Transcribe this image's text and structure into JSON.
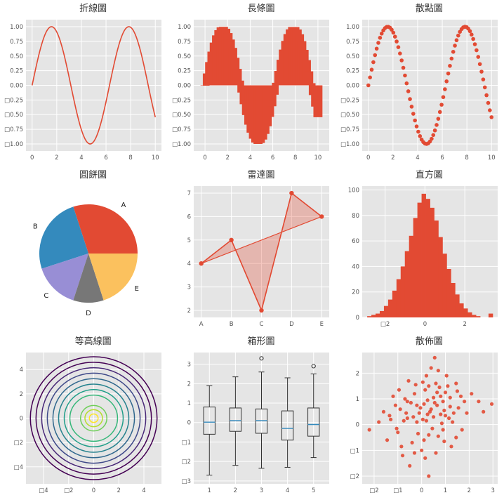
{
  "colors": {
    "panel": "#E5E5E5",
    "grid": "#ffffff",
    "accent": "#E24A33",
    "median_blue": "#348ABD",
    "text": "#333333",
    "tick_text": "#555555"
  },
  "chart_data": [
    {
      "type": "line",
      "title": "折線圖",
      "fn": "sin",
      "x_min": 0,
      "x_max": 10,
      "samples": 200,
      "color": "#E24A33",
      "xlim": [
        -0.5,
        10.5
      ],
      "ylim": [
        -1.12,
        1.12
      ],
      "x_ticks": {
        "values": [
          0,
          2,
          4,
          6,
          8,
          10
        ],
        "labels": [
          "0",
          "2",
          "4",
          "6",
          "8",
          "10"
        ]
      },
      "y_ticks": {
        "values": [
          1,
          0.75,
          0.5,
          0.25,
          0,
          -0.25,
          -0.5,
          -0.75,
          -1
        ],
        "labels": [
          "1.00",
          "0.75",
          "0.50",
          "0.25",
          "0.00",
          "□0.25",
          "□0.50",
          "□0.75",
          "□1.00"
        ]
      }
    },
    {
      "type": "bar",
      "title": "長條圖",
      "fn": "sin",
      "x_min": 0,
      "x_max": 10,
      "bars": 50,
      "bar_width": 0.8,
      "color": "#E24A33",
      "xlim": [
        -1.0,
        11.0
      ],
      "ylim": [
        -1.12,
        1.12
      ],
      "x_ticks": {
        "values": [
          0,
          2,
          4,
          6,
          8,
          10
        ],
        "labels": [
          "0",
          "2",
          "4",
          "6",
          "8",
          "10"
        ]
      },
      "y_ticks": {
        "values": [
          1,
          0.75,
          0.5,
          0.25,
          0,
          -0.25,
          -0.5,
          -0.75,
          -1
        ],
        "labels": [
          "1.00",
          "0.75",
          "0.50",
          "0.25",
          "0.00",
          "□0.25",
          "□0.50",
          "□0.75",
          "□1.00"
        ]
      }
    },
    {
      "type": "scatter-fn",
      "title": "散點圖",
      "fn": "sin",
      "x_min": 0,
      "x_max": 10,
      "points": 75,
      "color": "#E24A33",
      "xlim": [
        -0.5,
        10.5
      ],
      "ylim": [
        -1.12,
        1.12
      ],
      "x_ticks": {
        "values": [
          0,
          2,
          4,
          6,
          8,
          10
        ],
        "labels": [
          "0",
          "2",
          "4",
          "6",
          "8",
          "10"
        ]
      },
      "y_ticks": {
        "values": [
          1,
          0.75,
          0.5,
          0.25,
          0,
          -0.25,
          -0.5,
          -0.75,
          -1
        ],
        "labels": [
          "1.00",
          "0.75",
          "0.50",
          "0.25",
          "0.00",
          "□0.25",
          "□0.50",
          "□0.75",
          "□1.00"
        ]
      }
    },
    {
      "type": "pie",
      "title": "圓餅圖",
      "labels": [
        "A",
        "B",
        "C",
        "D",
        "E"
      ],
      "values": [
        30,
        25,
        15,
        10,
        20
      ],
      "colors": [
        "#E24A33",
        "#348ABD",
        "#988ED5",
        "#777777",
        "#FBC15E"
      ],
      "start_angle": 0,
      "direction": "counterclockwise"
    },
    {
      "type": "radar",
      "title": "雷達圖",
      "categories": [
        "A",
        "B",
        "C",
        "D",
        "E"
      ],
      "values": [
        4,
        5,
        2,
        7,
        6
      ],
      "color": "#E24A33",
      "fill_alpha": 0.3,
      "xlim": [
        -0.25,
        4.25
      ],
      "ylim": [
        1.7,
        7.3
      ],
      "x_ticks": {
        "values": [
          0,
          1,
          2,
          3,
          4
        ],
        "labels": [
          "A",
          "B",
          "C",
          "D",
          "E"
        ]
      },
      "y_ticks": {
        "values": [
          2,
          3,
          4,
          5,
          6,
          7
        ],
        "labels": [
          "2",
          "3",
          "4",
          "5",
          "6",
          "7"
        ]
      }
    },
    {
      "type": "histogram",
      "title": "直方圖",
      "color": "#E24A33",
      "bin_start": -2.9,
      "bin_width": 0.21,
      "counts": [
        1,
        2,
        3,
        5,
        9,
        14,
        21,
        30,
        40,
        52,
        64,
        78,
        90,
        97,
        93,
        86,
        76,
        63,
        50,
        38,
        27,
        18,
        11,
        7,
        4,
        2,
        1,
        0,
        0,
        3
      ],
      "xlim": [
        -3.15,
        3.65
      ],
      "ylim": [
        0,
        103
      ],
      "x_ticks": {
        "values": [
          -2,
          0,
          2
        ],
        "labels": [
          "□2",
          "0",
          "2"
        ]
      },
      "y_ticks": {
        "values": [
          0,
          20,
          40,
          60,
          80,
          100
        ],
        "labels": [
          "0",
          "20",
          "40",
          "60",
          "80",
          "100"
        ]
      }
    },
    {
      "type": "contour",
      "title": "等高線圖",
      "rings": [
        {
          "r": 0.35,
          "color": "#fde725"
        },
        {
          "r": 0.7,
          "color": "#b5de2b"
        },
        {
          "r": 1.05,
          "color": "#6ece58"
        },
        {
          "r": 1.9,
          "color": "#35b779"
        },
        {
          "r": 2.35,
          "color": "#1f9e89"
        },
        {
          "r": 2.8,
          "color": "#26828e"
        },
        {
          "r": 3.25,
          "color": "#31688e"
        },
        {
          "r": 3.7,
          "color": "#3e4989"
        },
        {
          "r": 4.15,
          "color": "#482878"
        },
        {
          "r": 4.6,
          "color": "#440154"
        },
        {
          "r": 5.05,
          "color": "#440154"
        }
      ],
      "xlim": [
        -5.4,
        5.4
      ],
      "ylim": [
        -5.4,
        5.4
      ],
      "x_ticks": {
        "values": [
          -4,
          -2,
          0,
          2,
          4
        ],
        "labels": [
          "□4",
          "□2",
          "0",
          "2",
          "4"
        ]
      },
      "y_ticks": {
        "values": [
          -4,
          -2,
          0,
          2,
          4
        ],
        "labels": [
          "□4",
          "□2",
          "0",
          "2",
          "4"
        ]
      }
    },
    {
      "type": "boxplot",
      "title": "箱形圖",
      "median_color": "#348ABD",
      "boxes": [
        {
          "lo": -2.7,
          "q1": -0.6,
          "med": 0.02,
          "q3": 0.8,
          "hi": 1.9,
          "outliers": []
        },
        {
          "lo": -2.2,
          "q1": -0.45,
          "med": 0.1,
          "q3": 0.75,
          "hi": 2.35,
          "outliers": []
        },
        {
          "lo": -2.35,
          "q1": -0.55,
          "med": 0.1,
          "q3": 0.7,
          "hi": 2.6,
          "outliers": [
            3.3
          ]
        },
        {
          "lo": -2.3,
          "q1": -0.9,
          "med": -0.3,
          "q3": 0.6,
          "hi": 2.3,
          "outliers": []
        },
        {
          "lo": -1.8,
          "q1": -0.7,
          "med": -0.1,
          "q3": 0.75,
          "hi": 2.5,
          "outliers": [
            2.9
          ]
        }
      ],
      "xlim": [
        0.4,
        5.6
      ],
      "ylim": [
        -3.15,
        3.6
      ],
      "x_ticks": {
        "values": [
          1,
          2,
          3,
          4,
          5
        ],
        "labels": [
          "1",
          "2",
          "3",
          "4",
          "5"
        ]
      },
      "y_ticks": {
        "values": [
          3,
          2,
          1,
          0,
          -1,
          -2,
          -3
        ],
        "labels": [
          "3",
          "2",
          "1",
          "0",
          "□1",
          "□2",
          "□3"
        ]
      }
    },
    {
      "type": "scatter",
      "title": "散佈圖",
      "color": "#E24A33",
      "points": [
        [
          -0.9,
          0.6
        ],
        [
          -0.3,
          1.2
        ],
        [
          0.1,
          0.8
        ],
        [
          0.5,
          0.3
        ],
        [
          0.8,
          1.1
        ],
        [
          1.2,
          0.7
        ],
        [
          -1.3,
          0.2
        ],
        [
          0.3,
          -0.4
        ],
        [
          0.6,
          1.6
        ],
        [
          -0.2,
          0.1
        ],
        [
          1.5,
          1.3
        ],
        [
          0.9,
          -0.2
        ],
        [
          -0.6,
          0.9
        ],
        [
          0.2,
          1.9
        ],
        [
          1.1,
          1.5
        ],
        [
          -1.0,
          -0.3
        ],
        [
          0.4,
          0.6
        ],
        [
          0.0,
          -1.0
        ],
        [
          -1.6,
          0.5
        ],
        [
          0.7,
          2.1
        ],
        [
          1.3,
          0.1
        ],
        [
          -0.4,
          -0.7
        ],
        [
          0.55,
          2.6
        ],
        [
          2.95,
          0.8
        ],
        [
          2.6,
          0.5
        ],
        [
          -2.2,
          -0.2
        ],
        [
          0.3,
          -2.0
        ],
        [
          -0.8,
          -1.2
        ],
        [
          1.8,
          0.9
        ],
        [
          1.0,
          0.35
        ],
        [
          -0.1,
          0.45
        ],
        [
          0.15,
          1.35
        ],
        [
          -0.55,
          1.7
        ],
        [
          0.85,
          0.05
        ],
        [
          1.45,
          -0.5
        ],
        [
          -1.2,
          1.1
        ],
        [
          0.65,
          0.75
        ],
        [
          -0.35,
          0.3
        ],
        [
          0.05,
          0.2
        ],
        [
          1.05,
          1.9
        ],
        [
          -0.75,
          0.15
        ],
        [
          0.45,
          -0.15
        ],
        [
          1.65,
          1.1
        ],
        [
          -1.45,
          -0.6
        ],
        [
          0.25,
          0.95
        ],
        [
          0.95,
          0.55
        ],
        [
          -0.15,
          -0.35
        ],
        [
          0.75,
          1.45
        ],
        [
          1.25,
          -0.85
        ],
        [
          -0.95,
          1.35
        ],
        [
          0.35,
          0.5
        ],
        [
          -0.5,
          -1.6
        ],
        [
          1.55,
          0.65
        ],
        [
          0.1,
          -0.6
        ],
        [
          -1.1,
          0.75
        ],
        [
          0.6,
          -1.1
        ],
        [
          2.1,
          1.2
        ],
        [
          -0.25,
          1.55
        ],
        [
          0.9,
          0.9
        ],
        [
          -0.65,
          0.45
        ],
        [
          1.35,
          0.45
        ],
        [
          0.2,
          0.15
        ],
        [
          -1.8,
          0.1
        ],
        [
          0.5,
          1.05
        ],
        [
          1.15,
          0.25
        ],
        [
          -0.45,
          0.85
        ],
        [
          0.05,
          1.65
        ],
        [
          0.7,
          -0.45
        ],
        [
          -0.85,
          -0.85
        ],
        [
          1.9,
          0.45
        ],
        [
          0.4,
          2.2
        ],
        [
          -0.05,
          0.65
        ],
        [
          1.0,
          1.25
        ],
        [
          -1.35,
          0.35
        ],
        [
          0.8,
          0.4
        ],
        [
          0.3,
          1.5
        ],
        [
          -0.6,
          0.25
        ],
        [
          1.7,
          -0.2
        ],
        [
          0.15,
          -1.3
        ],
        [
          -0.3,
          -1.1
        ],
        [
          2.4,
          0.9
        ],
        [
          0.55,
          0.85
        ],
        [
          1.45,
          1.6
        ],
        [
          -0.7,
          1.0
        ],
        [
          0.95,
          -0.65
        ],
        [
          0.25,
          0.4
        ],
        [
          -1.05,
          -0.15
        ],
        [
          0.65,
          1.25
        ],
        [
          1.2,
          1.05
        ],
        [
          -0.2,
          0.75
        ]
      ],
      "xlim": [
        -2.5,
        3.2
      ],
      "ylim": [
        -2.3,
        2.8
      ],
      "x_ticks": {
        "values": [
          -2,
          -1,
          0,
          1,
          2,
          3
        ],
        "labels": [
          "□2",
          "□1",
          "0",
          "1",
          "2",
          "3"
        ]
      },
      "y_ticks": {
        "values": [
          2,
          1,
          0,
          -1,
          -2
        ],
        "labels": [
          "2",
          "1",
          "0",
          "□1",
          "□2"
        ]
      }
    }
  ]
}
